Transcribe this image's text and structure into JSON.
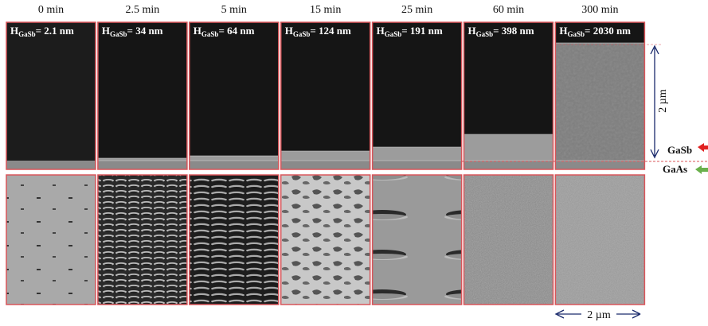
{
  "columns": [
    {
      "time": "0 min",
      "label": {
        "symbol": "H",
        "subscript": "GaSb",
        "value": "= 2.1 nm"
      }
    },
    {
      "time": "2.5 min",
      "label": {
        "symbol": "H",
        "subscript": "GaSb",
        "value": "= 34 nm"
      }
    },
    {
      "time": "5 min",
      "label": {
        "symbol": "H",
        "subscript": "GaSb",
        "value": "= 64 nm"
      }
    },
    {
      "time": "15 min",
      "label": {
        "symbol": "H",
        "subscript": "GaSb",
        "value": "= 124 nm"
      }
    },
    {
      "time": "25 min",
      "label": {
        "symbol": "H",
        "subscript": "GaSb",
        "value": "= 191 nm"
      }
    },
    {
      "time": "60 min",
      "label": {
        "symbol": "H",
        "subscript": "GaSb",
        "value": "= 398 nm"
      }
    },
    {
      "time": "300 min",
      "label": {
        "symbol": "H",
        "subscript": "GaSb",
        "value": "= 2030 nm"
      }
    }
  ],
  "annotations": {
    "vertical_scale": "2 µm",
    "horizontal_scale": "2 µm",
    "upper_material": "GaSb",
    "lower_material": "GaAs"
  }
}
